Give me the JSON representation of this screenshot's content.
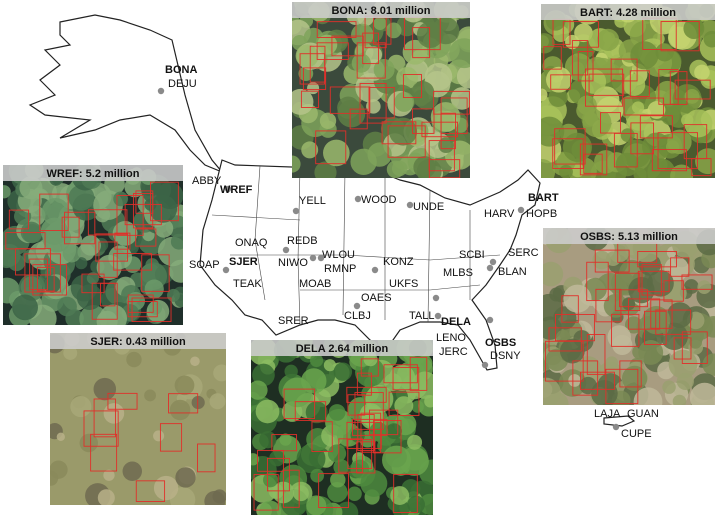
{
  "panels": [
    {
      "title": "BONA: 8.01 million"
    },
    {
      "title": "BART: 4.28 million"
    },
    {
      "title": "WREF: 5.2 million"
    },
    {
      "title": "OSBS: 5.13 million"
    },
    {
      "title": "SJER: 0.43 million"
    },
    {
      "title": "DELA 2.64 million"
    }
  ],
  "sites": [
    {
      "label": "BONA",
      "bold": true
    },
    {
      "label": "DEJU",
      "bold": false
    },
    {
      "label": "ABBY",
      "bold": false
    },
    {
      "label": "WREF",
      "bold": true
    },
    {
      "label": "YELL",
      "bold": false
    },
    {
      "label": "WOOD",
      "bold": false
    },
    {
      "label": "UNDE",
      "bold": false
    },
    {
      "label": "HARV",
      "bold": false
    },
    {
      "label": "BART",
      "bold": true
    },
    {
      "label": "HOPB",
      "bold": false
    },
    {
      "label": "ONAQ",
      "bold": false
    },
    {
      "label": "REDB",
      "bold": false
    },
    {
      "label": "SOAP",
      "bold": false
    },
    {
      "label": "SJER",
      "bold": true
    },
    {
      "label": "NIWO",
      "bold": false
    },
    {
      "label": "WLOU",
      "bold": false
    },
    {
      "label": "RMNP",
      "bold": false
    },
    {
      "label": "KONZ",
      "bold": false
    },
    {
      "label": "SCBI",
      "bold": false
    },
    {
      "label": "SERC",
      "bold": false
    },
    {
      "label": "MLBS",
      "bold": false
    },
    {
      "label": "BLAN",
      "bold": false
    },
    {
      "label": "TEAK",
      "bold": false
    },
    {
      "label": "MOAB",
      "bold": false
    },
    {
      "label": "UKFS",
      "bold": false
    },
    {
      "label": "OAES",
      "bold": false
    },
    {
      "label": "CLBJ",
      "bold": false
    },
    {
      "label": "TALL",
      "bold": false
    },
    {
      "label": "DELA",
      "bold": true
    },
    {
      "label": "SRER",
      "bold": false
    },
    {
      "label": "LENO",
      "bold": false
    },
    {
      "label": "OSBS",
      "bold": true
    },
    {
      "label": "JERC",
      "bold": false
    },
    {
      "label": "DSNY",
      "bold": false
    },
    {
      "label": "LAJA",
      "bold": false
    },
    {
      "label": "GUAN",
      "bold": false
    },
    {
      "label": "CUPE",
      "bold": false
    }
  ]
}
